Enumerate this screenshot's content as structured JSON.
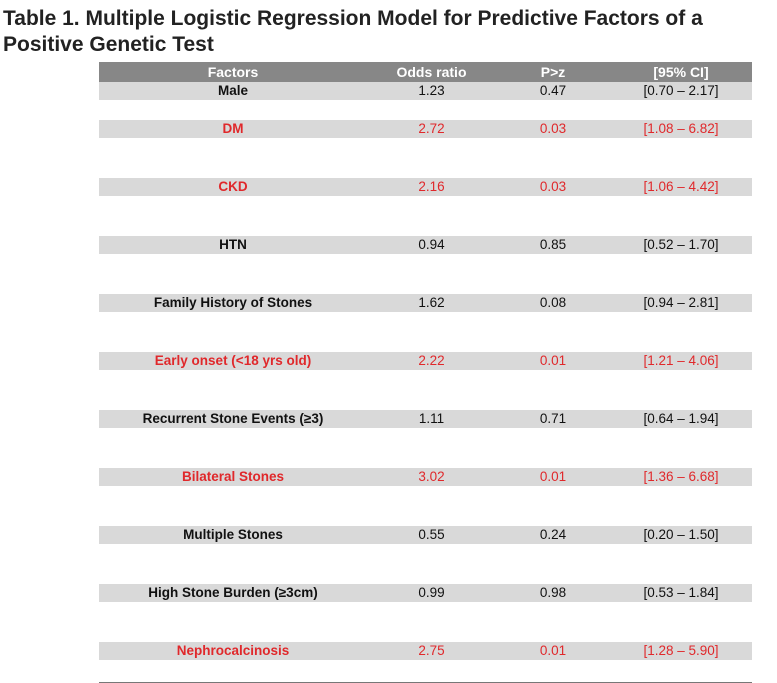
{
  "title": "Table 1. Multiple Logistic Regression Model for Predictive Factors of a Positive Genetic Test",
  "colors": {
    "header_bg": "#878787",
    "row_bg": "#d9d9d9",
    "significant_text": "#e0282b",
    "normal_text": "#111111"
  },
  "table": {
    "headers": [
      "Factors",
      "Odds ratio",
      "P>z",
      "[95% CI]"
    ],
    "rows": [
      {
        "factor": "Male",
        "odds_ratio": "1.23",
        "p": "0.47",
        "ci": "[0.70 – 2.17]",
        "significant": false
      },
      {
        "factor": "DM",
        "odds_ratio": "2.72",
        "p": "0.03",
        "ci": "[1.08 – 6.82]",
        "significant": true
      },
      {
        "factor": "CKD",
        "odds_ratio": "2.16",
        "p": "0.03",
        "ci": "[1.06 – 4.42]",
        "significant": true
      },
      {
        "factor": "HTN",
        "odds_ratio": "0.94",
        "p": "0.85",
        "ci": "[0.52 – 1.70]",
        "significant": false
      },
      {
        "factor": "Family History of Stones",
        "odds_ratio": "1.62",
        "p": "0.08",
        "ci": "[0.94 – 2.81]",
        "significant": false
      },
      {
        "factor": "Early onset (<18 yrs old)",
        "odds_ratio": "2.22",
        "p": "0.01",
        "ci": "[1.21 – 4.06]",
        "significant": true
      },
      {
        "factor": "Recurrent Stone Events (≥3)",
        "odds_ratio": "1.11",
        "p": "0.71",
        "ci": "[0.64 – 1.94]",
        "significant": false
      },
      {
        "factor": "Bilateral Stones",
        "odds_ratio": "3.02",
        "p": "0.01",
        "ci": "[1.36 – 6.68]",
        "significant": true
      },
      {
        "factor": "Multiple Stones",
        "odds_ratio": "0.55",
        "p": "0.24",
        "ci": "[0.20 – 1.50]",
        "significant": false
      },
      {
        "factor": "High Stone Burden (≥3cm)",
        "odds_ratio": "0.99",
        "p": "0.98",
        "ci": "[0.53 – 1.84]",
        "significant": false
      },
      {
        "factor": "Nephrocalcinosis",
        "odds_ratio": "2.75",
        "p": "0.01",
        "ci": "[1.28 – 5.90]",
        "significant": true
      }
    ]
  }
}
